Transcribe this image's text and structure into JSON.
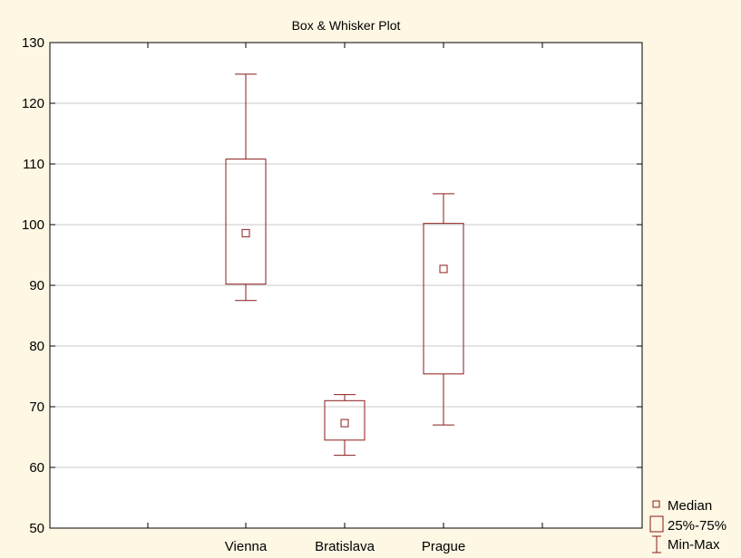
{
  "chart_data": {
    "type": "box",
    "title": "Box & Whisker Plot",
    "xlabel": "",
    "ylabel": "",
    "ylim": [
      50,
      130
    ],
    "yticks": [
      50,
      60,
      70,
      80,
      90,
      100,
      110,
      120,
      130
    ],
    "categories": [
      "Vienna",
      "Bratislava",
      "Prague"
    ],
    "boxes": [
      {
        "category": "Vienna",
        "min": 87.5,
        "q1": 90.2,
        "median": 98.6,
        "q3": 110.8,
        "max": 124.8
      },
      {
        "category": "Bratislava",
        "min": 62.0,
        "q1": 64.5,
        "median": 67.3,
        "q3": 71.0,
        "max": 72.0
      },
      {
        "category": "Prague",
        "min": 67.0,
        "q1": 75.4,
        "median": 92.7,
        "q3": 100.2,
        "max": 105.1
      }
    ],
    "grid": true,
    "legend_position": "bottom-right",
    "legend": [
      {
        "label": "Median",
        "symbol": "small-square"
      },
      {
        "label": "25%-75%",
        "symbol": "box"
      },
      {
        "label": "Min-Max",
        "symbol": "whisker"
      }
    ],
    "colors": {
      "background": "#fdf7e3",
      "plot_area": "#ffffff",
      "box_stroke": "#8b1a1a",
      "grid": "#c8c8c8",
      "axis": "#000000"
    }
  }
}
